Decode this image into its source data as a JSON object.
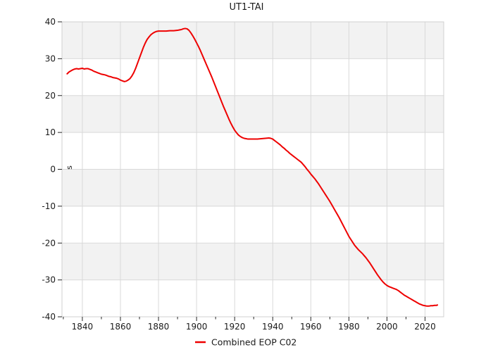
{
  "chart_data": {
    "type": "line",
    "title": "UT1-TAI",
    "xlabel": "",
    "ylabel": "s",
    "xlim": [
      1829.3,
      2029.8
    ],
    "ylim": [
      -40,
      40
    ],
    "x_major_ticks": [
      1840,
      1860,
      1880,
      1900,
      1920,
      1940,
      1960,
      1980,
      2000,
      2020
    ],
    "x_minor_ticks": [
      1830,
      1850,
      1870,
      1890,
      1910,
      1930,
      1950,
      1970,
      1990,
      2010,
      2030
    ],
    "y_ticks": [
      -40,
      -30,
      -20,
      -10,
      0,
      10,
      20,
      30,
      40
    ],
    "grid": true,
    "background_stripes": "horizontal-alternating-gray-white",
    "legend_position": "bottom-center",
    "series": [
      {
        "name": "Combined EOP C02",
        "color": "#ee0000",
        "points": [
          [
            1832,
            25.9
          ],
          [
            1833,
            26.4
          ],
          [
            1834,
            26.7
          ],
          [
            1835,
            27.0
          ],
          [
            1836,
            27.2
          ],
          [
            1837,
            27.3
          ],
          [
            1838,
            27.2
          ],
          [
            1839,
            27.3
          ],
          [
            1840,
            27.4
          ],
          [
            1841,
            27.2
          ],
          [
            1842,
            27.3
          ],
          [
            1843,
            27.3
          ],
          [
            1844,
            27.1
          ],
          [
            1845,
            26.9
          ],
          [
            1846,
            26.6
          ],
          [
            1847,
            26.4
          ],
          [
            1848,
            26.2
          ],
          [
            1849,
            26.0
          ],
          [
            1850,
            25.8
          ],
          [
            1851,
            25.7
          ],
          [
            1852,
            25.6
          ],
          [
            1853,
            25.4
          ],
          [
            1854,
            25.2
          ],
          [
            1855,
            25.1
          ],
          [
            1856,
            24.9
          ],
          [
            1857,
            24.8
          ],
          [
            1858,
            24.7
          ],
          [
            1859,
            24.5
          ],
          [
            1860,
            24.2
          ],
          [
            1861,
            24.0
          ],
          [
            1862,
            23.8
          ],
          [
            1863,
            23.9
          ],
          [
            1864,
            24.2
          ],
          [
            1865,
            24.6
          ],
          [
            1866,
            25.3
          ],
          [
            1867,
            26.2
          ],
          [
            1868,
            27.4
          ],
          [
            1869,
            28.8
          ],
          [
            1870,
            30.2
          ],
          [
            1871,
            31.6
          ],
          [
            1872,
            33.0
          ],
          [
            1873,
            34.2
          ],
          [
            1874,
            35.2
          ],
          [
            1875,
            35.9
          ],
          [
            1876,
            36.5
          ],
          [
            1877,
            36.9
          ],
          [
            1878,
            37.2
          ],
          [
            1879,
            37.4
          ],
          [
            1880,
            37.5
          ],
          [
            1882,
            37.5
          ],
          [
            1884,
            37.5
          ],
          [
            1886,
            37.6
          ],
          [
            1888,
            37.6
          ],
          [
            1890,
            37.7
          ],
          [
            1891,
            37.8
          ],
          [
            1892,
            37.9
          ],
          [
            1893,
            38.1
          ],
          [
            1894,
            38.2
          ],
          [
            1895,
            38.1
          ],
          [
            1896,
            37.7
          ],
          [
            1897,
            37.0
          ],
          [
            1898,
            36.2
          ],
          [
            1899,
            35.3
          ],
          [
            1900,
            34.3
          ],
          [
            1901,
            33.3
          ],
          [
            1902,
            32.2
          ],
          [
            1903,
            31.0
          ],
          [
            1904,
            29.8
          ],
          [
            1905,
            28.6
          ],
          [
            1906,
            27.4
          ],
          [
            1907,
            26.2
          ],
          [
            1908,
            25.0
          ],
          [
            1909,
            23.7
          ],
          [
            1910,
            22.4
          ],
          [
            1911,
            21.1
          ],
          [
            1912,
            19.8
          ],
          [
            1913,
            18.5
          ],
          [
            1914,
            17.2
          ],
          [
            1915,
            16.0
          ],
          [
            1916,
            14.8
          ],
          [
            1917,
            13.6
          ],
          [
            1918,
            12.5
          ],
          [
            1919,
            11.5
          ],
          [
            1920,
            10.6
          ],
          [
            1921,
            9.9
          ],
          [
            1922,
            9.3
          ],
          [
            1923,
            8.9
          ],
          [
            1924,
            8.6
          ],
          [
            1925,
            8.4
          ],
          [
            1926,
            8.3
          ],
          [
            1927,
            8.2
          ],
          [
            1928,
            8.2
          ],
          [
            1930,
            8.2
          ],
          [
            1932,
            8.2
          ],
          [
            1934,
            8.3
          ],
          [
            1936,
            8.4
          ],
          [
            1938,
            8.5
          ],
          [
            1939,
            8.4
          ],
          [
            1940,
            8.2
          ],
          [
            1941,
            7.8
          ],
          [
            1942,
            7.4
          ],
          [
            1943,
            7.0
          ],
          [
            1944,
            6.6
          ],
          [
            1945,
            6.1
          ],
          [
            1946,
            5.7
          ],
          [
            1947,
            5.2
          ],
          [
            1948,
            4.8
          ],
          [
            1949,
            4.3
          ],
          [
            1950,
            3.9
          ],
          [
            1951,
            3.5
          ],
          [
            1952,
            3.1
          ],
          [
            1953,
            2.7
          ],
          [
            1954,
            2.3
          ],
          [
            1955,
            1.9
          ],
          [
            1956,
            1.3
          ],
          [
            1957,
            0.7
          ],
          [
            1958,
            0.0
          ],
          [
            1959,
            -0.6
          ],
          [
            1960,
            -1.3
          ],
          [
            1961,
            -1.9
          ],
          [
            1962,
            -2.5
          ],
          [
            1963,
            -3.2
          ],
          [
            1964,
            -3.9
          ],
          [
            1965,
            -4.7
          ],
          [
            1966,
            -5.5
          ],
          [
            1967,
            -6.3
          ],
          [
            1968,
            -7.1
          ],
          [
            1969,
            -7.9
          ],
          [
            1970,
            -8.7
          ],
          [
            1971,
            -9.6
          ],
          [
            1972,
            -10.5
          ],
          [
            1973,
            -11.4
          ],
          [
            1974,
            -12.3
          ],
          [
            1975,
            -13.2
          ],
          [
            1976,
            -14.2
          ],
          [
            1977,
            -15.2
          ],
          [
            1978,
            -16.2
          ],
          [
            1979,
            -17.2
          ],
          [
            1980,
            -18.2
          ],
          [
            1981,
            -19.0
          ],
          [
            1982,
            -19.8
          ],
          [
            1983,
            -20.6
          ],
          [
            1984,
            -21.2
          ],
          [
            1985,
            -21.8
          ],
          [
            1986,
            -22.3
          ],
          [
            1987,
            -22.8
          ],
          [
            1988,
            -23.4
          ],
          [
            1989,
            -24.0
          ],
          [
            1990,
            -24.7
          ],
          [
            1991,
            -25.4
          ],
          [
            1992,
            -26.2
          ],
          [
            1993,
            -27.0
          ],
          [
            1994,
            -27.8
          ],
          [
            1995,
            -28.6
          ],
          [
            1996,
            -29.3
          ],
          [
            1997,
            -30.0
          ],
          [
            1998,
            -30.6
          ],
          [
            1999,
            -31.1
          ],
          [
            2000,
            -31.5
          ],
          [
            2001,
            -31.8
          ],
          [
            2002,
            -32.0
          ],
          [
            2003,
            -32.2
          ],
          [
            2004,
            -32.4
          ],
          [
            2005,
            -32.6
          ],
          [
            2006,
            -32.9
          ],
          [
            2007,
            -33.3
          ],
          [
            2008,
            -33.7
          ],
          [
            2009,
            -34.1
          ],
          [
            2010,
            -34.4
          ],
          [
            2011,
            -34.7
          ],
          [
            2012,
            -35.0
          ],
          [
            2013,
            -35.3
          ],
          [
            2014,
            -35.6
          ],
          [
            2015,
            -35.9
          ],
          [
            2016,
            -36.2
          ],
          [
            2017,
            -36.5
          ],
          [
            2018,
            -36.7
          ],
          [
            2019,
            -36.9
          ],
          [
            2020,
            -37.0
          ],
          [
            2021,
            -37.1
          ],
          [
            2022,
            -37.1
          ],
          [
            2023,
            -37.0
          ],
          [
            2024,
            -37.0
          ],
          [
            2025,
            -36.9
          ],
          [
            2026,
            -36.9
          ],
          [
            2026.5,
            -36.8
          ]
        ]
      }
    ],
    "colors": {
      "stripe_gray": "#f2f2f2",
      "gridline": "#d9d9d9",
      "plot_border": "#d0d0d0",
      "tick_mark": "#262626",
      "text": "#1a1a1a"
    }
  }
}
